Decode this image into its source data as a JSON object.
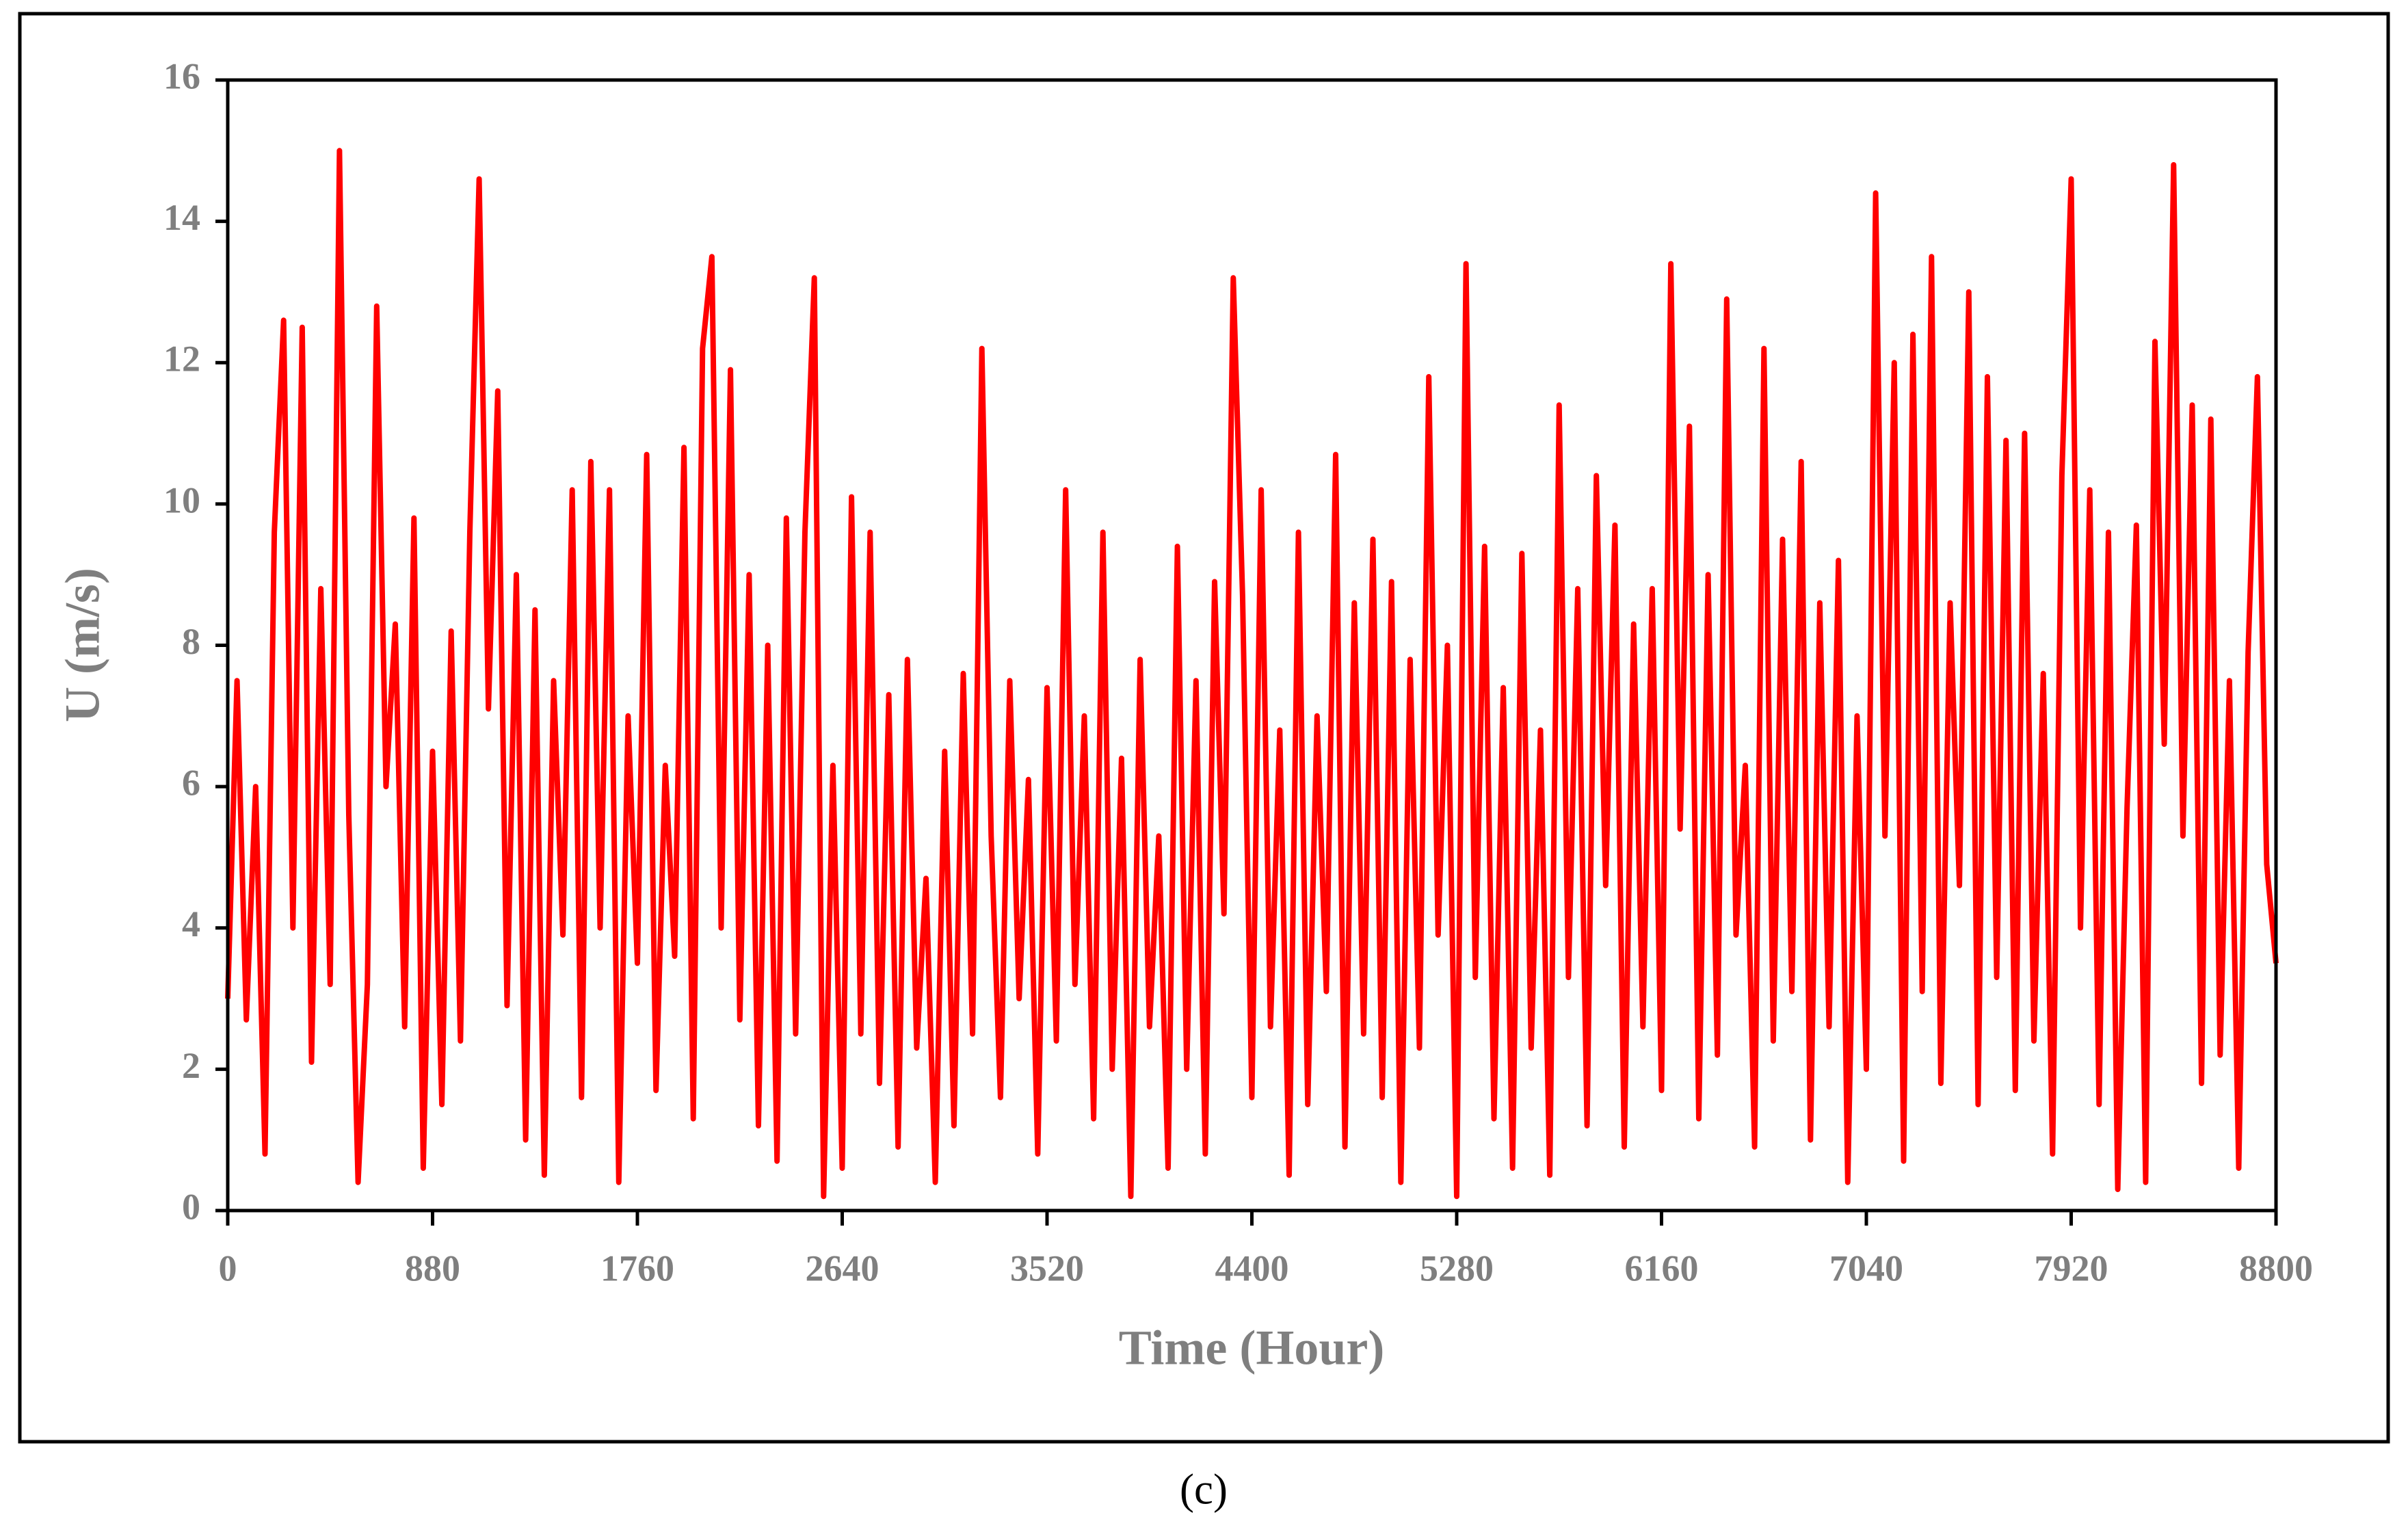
{
  "chart_data": {
    "type": "line",
    "xlabel": "Time (Hour)",
    "ylabel": "U (m/s)",
    "caption": "(c)",
    "xlim": [
      0,
      8800
    ],
    "ylim": [
      0,
      16
    ],
    "xticks": [
      0,
      880,
      1760,
      2640,
      3520,
      4400,
      5280,
      6160,
      7040,
      7920,
      8800
    ],
    "yticks": [
      0,
      2,
      4,
      6,
      8,
      10,
      12,
      14,
      16
    ],
    "grid": false,
    "color": "#ff0000",
    "x": [
      0,
      40,
      80,
      120,
      160,
      200,
      240,
      280,
      320,
      360,
      400,
      440,
      480,
      520,
      560,
      600,
      640,
      680,
      720,
      760,
      800,
      840,
      880,
      920,
      960,
      1000,
      1040,
      1080,
      1120,
      1160,
      1200,
      1240,
      1280,
      1320,
      1360,
      1400,
      1440,
      1480,
      1520,
      1560,
      1600,
      1640,
      1680,
      1720,
      1760,
      1800,
      1840,
      1880,
      1920,
      1960,
      2000,
      2040,
      2080,
      2120,
      2160,
      2200,
      2240,
      2280,
      2320,
      2360,
      2400,
      2440,
      2480,
      2520,
      2560,
      2600,
      2640,
      2680,
      2720,
      2760,
      2800,
      2840,
      2880,
      2920,
      2960,
      3000,
      3040,
      3080,
      3120,
      3160,
      3200,
      3240,
      3280,
      3320,
      3360,
      3400,
      3440,
      3480,
      3520,
      3560,
      3600,
      3640,
      3680,
      3720,
      3760,
      3800,
      3840,
      3880,
      3920,
      3960,
      4000,
      4040,
      4080,
      4120,
      4160,
      4200,
      4240,
      4280,
      4320,
      4360,
      4400,
      4440,
      4480,
      4520,
      4560,
      4600,
      4640,
      4680,
      4720,
      4760,
      4800,
      4840,
      4880,
      4920,
      4960,
      5000,
      5040,
      5080,
      5120,
      5160,
      5200,
      5240,
      5280,
      5320,
      5360,
      5400,
      5440,
      5480,
      5520,
      5560,
      5600,
      5640,
      5680,
      5720,
      5760,
      5800,
      5840,
      5880,
      5920,
      5960,
      6000,
      6040,
      6080,
      6120,
      6160,
      6200,
      6240,
      6280,
      6320,
      6360,
      6400,
      6440,
      6480,
      6520,
      6560,
      6600,
      6640,
      6680,
      6720,
      6760,
      6800,
      6840,
      6880,
      6920,
      6960,
      7000,
      7040,
      7080,
      7120,
      7160,
      7200,
      7240,
      7280,
      7320,
      7360,
      7400,
      7440,
      7480,
      7520,
      7560,
      7600,
      7640,
      7680,
      7720,
      7760,
      7800,
      7840,
      7880,
      7920,
      7960,
      8000,
      8040,
      8080,
      8120,
      8160,
      8200,
      8240,
      8280,
      8320,
      8360,
      8400,
      8440,
      8480,
      8520,
      8560,
      8600,
      8640,
      8680,
      8720,
      8760,
      8800
    ],
    "values": [
      3,
      7.5,
      2.7,
      6,
      0.8,
      9.6,
      12.6,
      4,
      12.5,
      2.1,
      8.8,
      3.2,
      15,
      5.6,
      0.4,
      3.2,
      12.8,
      6,
      8.3,
      2.6,
      9.8,
      0.6,
      6.5,
      1.5,
      8.2,
      2.4,
      9.6,
      14.6,
      7.1,
      11.6,
      2.9,
      9,
      1,
      8.5,
      0.5,
      7.5,
      3.9,
      10.2,
      1.6,
      10.6,
      4,
      10.2,
      0.4,
      7,
      3.5,
      10.7,
      1.7,
      6.3,
      3.6,
      10.8,
      1.3,
      12.2,
      13.5,
      4,
      11.9,
      2.7,
      9,
      1.2,
      8,
      0.7,
      9.8,
      2.5,
      9.6,
      13.2,
      0.2,
      6.3,
      0.6,
      10.1,
      2.5,
      9.6,
      1.8,
      7.3,
      0.9,
      7.8,
      2.3,
      4.7,
      0.4,
      6.5,
      1.2,
      7.6,
      2.5,
      12.2,
      5.3,
      1.6,
      7.5,
      3,
      6.1,
      0.8,
      7.4,
      2.4,
      10.2,
      3.2,
      7,
      1.3,
      9.6,
      2,
      6.4,
      0.2,
      7.8,
      2.6,
      5.3,
      0.6,
      9.4,
      2,
      7.5,
      0.8,
      8.9,
      4.2,
      13.2,
      8.7,
      1.6,
      10.2,
      2.6,
      6.8,
      0.5,
      9.6,
      1.5,
      7,
      3.1,
      10.7,
      0.9,
      8.6,
      2.5,
      9.5,
      1.6,
      8.9,
      0.4,
      7.8,
      2.3,
      11.8,
      3.9,
      8,
      0.2,
      13.4,
      3.3,
      9.4,
      1.3,
      7.4,
      0.6,
      9.3,
      2.3,
      6.8,
      0.5,
      11.4,
      3.3,
      8.8,
      1.2,
      10.4,
      4.6,
      9.7,
      0.9,
      8.3,
      2.6,
      8.8,
      1.7,
      13.4,
      5.4,
      11.1,
      1.3,
      9,
      2.2,
      12.9,
      3.9,
      6.3,
      0.9,
      12.2,
      2.4,
      9.5,
      3.1,
      10.6,
      1,
      8.6,
      2.6,
      9.2,
      0.4,
      7,
      2,
      14.4,
      5.3,
      12,
      0.7,
      12.4,
      3.1,
      13.5,
      1.8,
      8.6,
      4.6,
      13,
      1.5,
      11.8,
      3.3,
      10.9,
      1.7,
      11,
      2.4,
      7.6,
      0.8,
      10.4,
      14.6,
      4,
      10.2,
      1.5,
      9.6,
      0.3,
      5.7,
      9.7,
      0.4,
      12.3,
      6.6,
      14.8,
      5.3,
      11.4,
      1.8,
      11.2,
      2.2,
      7.5,
      0.6,
      7.9,
      11.8,
      4.9,
      3.5
    ]
  }
}
